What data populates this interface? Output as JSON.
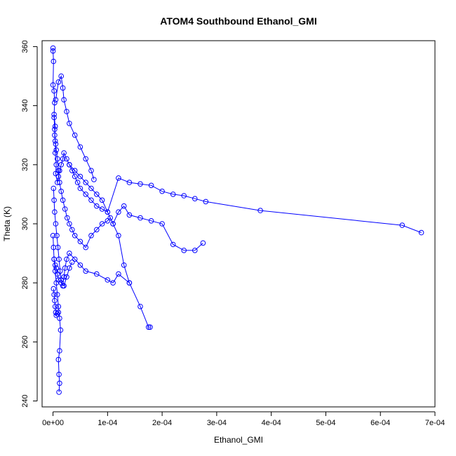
{
  "chart_data": {
    "type": "line",
    "title": "ATOM4 Southbound Ethanol_GMI",
    "xlabel": "Ethanol_GMI",
    "ylabel": "Theta (K)",
    "xlim": [
      -2e-05,
      0.0007
    ],
    "ylim": [
      238,
      362
    ],
    "x_ticks": [
      0,
      0.0001,
      0.0002,
      0.0003,
      0.0004,
      0.0005,
      0.0006,
      0.0007
    ],
    "x_tick_labels": [
      "0e+00",
      "1e-04",
      "2e-04",
      "3e-04",
      "4e-04",
      "5e-04",
      "6e-04",
      "7e-04"
    ],
    "y_ticks": [
      240,
      260,
      280,
      300,
      320,
      340,
      360
    ],
    "y_tick_labels": [
      "240",
      "260",
      "280",
      "300",
      "320",
      "340",
      "360"
    ],
    "grid": false,
    "series_color": "#0000ff",
    "marker": "open-circle",
    "series": [
      {
        "x": [
          0.0,
          0.0,
          1e-06,
          0.0,
          2e-06,
          3e-06,
          2e-06,
          4e-06,
          3e-06,
          5e-06,
          4e-06,
          6e-06,
          5e-06,
          8e-06,
          1e-05,
          1.2e-05,
          1.5e-05,
          1.8e-05,
          2e-05,
          2.5e-05,
          3e-05,
          3.5e-05,
          4e-05,
          4.5e-05,
          5e-05,
          6e-05,
          7e-05,
          8e-05,
          9e-05,
          0.0001,
          0.00012,
          0.00014,
          0.00016,
          0.00018,
          0.0002,
          0.00022,
          0.00024,
          0.00026,
          0.00028,
          0.00038,
          0.00064,
          0.000675
        ],
        "y": [
          359.5,
          358.5,
          355.0,
          347.0,
          345.0,
          341.0,
          337.0,
          333.0,
          330.0,
          327.0,
          324.0,
          320.0,
          317.0,
          314.0,
          316.0,
          318.0,
          320.0,
          322.0,
          324.0,
          322.0,
          320.0,
          318.0,
          316.0,
          314.0,
          312.0,
          310.0,
          308.0,
          306.0,
          305.0,
          304.0,
          315.5,
          314.0,
          313.5,
          313.0,
          311.0,
          310.0,
          309.5,
          308.5,
          307.5,
          304.5,
          299.5,
          297.0
        ]
      },
      {
        "x": [
          2e-06,
          3e-06,
          4e-06,
          6e-06,
          8e-06,
          1e-05,
          1.2e-05,
          1.5e-05,
          1.8e-05,
          2.2e-05,
          2.6e-05,
          3e-05,
          3.5e-05,
          4e-05,
          5e-05,
          6e-05,
          7e-05,
          8e-05,
          9e-05,
          0.0001,
          0.000105,
          0.00011,
          0.00012,
          0.00013,
          0.00014,
          0.00016,
          0.00018,
          0.0002,
          0.00022,
          0.00024,
          0.00026,
          0.000275
        ],
        "y": [
          336.0,
          332.0,
          328.0,
          325.0,
          322.0,
          318.0,
          314.0,
          311.0,
          308.0,
          305.0,
          302.0,
          300.0,
          298.0,
          296.0,
          294.0,
          292.0,
          296.0,
          298.0,
          300.0,
          301.0,
          302.0,
          300.0,
          304.0,
          306.0,
          303.0,
          302.0,
          301.0,
          300.0,
          293.0,
          291.0,
          291.0,
          293.5
        ]
      },
      {
        "x": [
          1e-06,
          2e-06,
          3e-06,
          5e-06,
          7e-06,
          9e-06,
          1.1e-05,
          1.3e-05,
          1.5e-05,
          1.8e-05,
          2e-05,
          2.2e-05,
          2.5e-05,
          3e-05,
          4e-05,
          5e-05,
          6e-05,
          8e-05,
          0.0001,
          0.00011,
          0.00012,
          0.00014,
          0.00016,
          0.000175,
          0.000178
        ],
        "y": [
          312.0,
          308.0,
          304.0,
          300.0,
          296.0,
          292.0,
          288.0,
          284.0,
          281.0,
          279.0,
          282.0,
          285.0,
          288.0,
          290.0,
          288.0,
          286.0,
          284.0,
          283.0,
          281.0,
          280.0,
          283.0,
          280.0,
          272.0,
          265.0,
          265.0
        ]
      },
      {
        "x": [
          0.0,
          1e-06,
          2e-06,
          4e-06,
          6e-06,
          8e-06,
          1e-05,
          1.2e-05,
          1.4e-05,
          1.2e-05,
          1e-05,
          1.1e-05,
          1.2e-05,
          1.1e-05
        ],
        "y": [
          296.0,
          292.0,
          288.0,
          284.0,
          280.0,
          276.0,
          272.0,
          268.0,
          264.0,
          257.0,
          254.0,
          249.0,
          246.0,
          243.0
        ]
      },
      {
        "x": [
          5e-06,
          1e-05,
          1.5e-05,
          1.8e-05,
          2e-05,
          2.5e-05,
          3e-05,
          4e-05,
          5e-05,
          6e-05,
          7e-05,
          7.5e-05
        ],
        "y": [
          342.0,
          348.0,
          350.0,
          346.0,
          342.0,
          338.0,
          334.0,
          330.0,
          326.0,
          322.0,
          318.0,
          315.0
        ]
      },
      {
        "x": [
          3e-05,
          4e-05,
          5e-05,
          6e-05,
          7e-05,
          8e-05,
          9e-05,
          0.0001,
          0.00011,
          0.00012,
          0.00013,
          0.00014
        ],
        "y": [
          320.0,
          318.0,
          316.0,
          314.0,
          312.0,
          310.0,
          308.0,
          304.0,
          300.0,
          296.0,
          286.0,
          280.0
        ]
      },
      {
        "x": [
          2e-06,
          4e-06,
          6e-06,
          8e-06,
          1e-05,
          1.5e-05,
          2e-05,
          2.5e-05,
          3e-05,
          3.5e-05
        ],
        "y": [
          288.0,
          286.0,
          285.0,
          283.0,
          281.0,
          280.0,
          279.0,
          282.0,
          285.0,
          287.0
        ]
      },
      {
        "x": [
          1e-06,
          2e-06,
          3e-06,
          4e-06,
          5e-06,
          6e-06,
          8e-06,
          1e-05
        ],
        "y": [
          278.0,
          276.0,
          274.0,
          272.0,
          270.0,
          269.0,
          269.5,
          270.0
        ]
      }
    ]
  }
}
